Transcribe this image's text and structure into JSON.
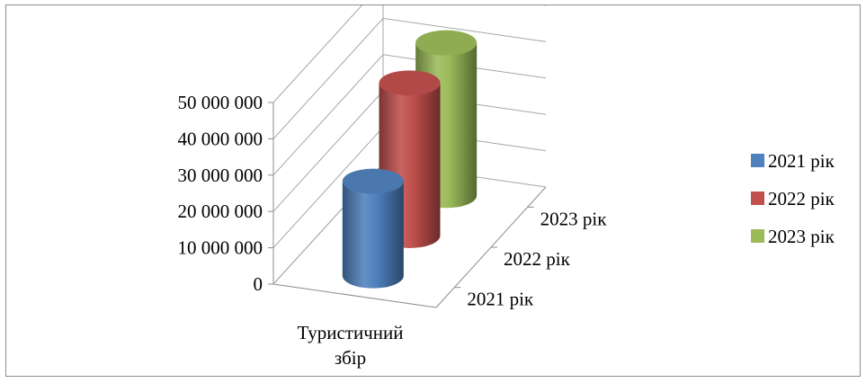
{
  "chart_data": {
    "type": "bar",
    "shape": "cylinder-3d",
    "title": "",
    "categories": [
      "Туристичний збір"
    ],
    "category_label_lines": [
      "Туристичний",
      "збір"
    ],
    "series": [
      {
        "name": "2021 рік",
        "values": [
          26000000
        ],
        "color": "#4f81bd"
      },
      {
        "name": "2022 рік",
        "values": [
          42000000
        ],
        "color": "#c0504d"
      },
      {
        "name": "2023 рік",
        "values": [
          42000000
        ],
        "color": "#9bbb59"
      }
    ],
    "depth_labels": [
      "2021 рік",
      "2022 рік",
      "2023 рік"
    ],
    "y_ticks": [
      "0",
      "10 000 000",
      "20 000 000",
      "30 000 000",
      "40 000 000",
      "50 000 000"
    ],
    "ylim": [
      0,
      50000000
    ],
    "legend": {
      "position": "right",
      "entries": [
        "2021 рік",
        "2022 рік",
        "2023 рік"
      ]
    },
    "grid": true
  }
}
